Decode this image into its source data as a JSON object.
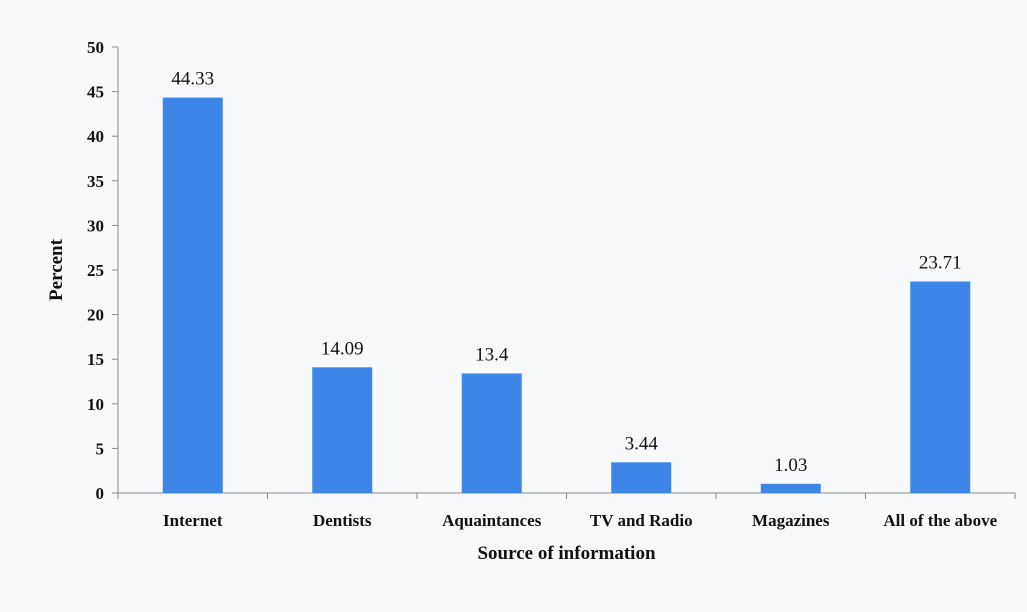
{
  "chart_data": {
    "type": "bar",
    "title": "",
    "xlabel": "Source of information",
    "ylabel": "Percent",
    "categories": [
      "Internet",
      "Dentists",
      "Aquaintances",
      "TV and Radio",
      "Magazines",
      "All of the above"
    ],
    "values": [
      44.33,
      14.09,
      13.4,
      3.44,
      1.03,
      23.71
    ],
    "data_labels": [
      "44.33",
      "14.09",
      "13.4",
      "3.44",
      "1.03",
      "23.71"
    ],
    "ylim": [
      0,
      50
    ],
    "yticks": [
      "0",
      "5",
      "10",
      "15",
      "20",
      "25",
      "30",
      "35",
      "40",
      "45",
      "50"
    ],
    "grid": false,
    "legend": "none",
    "bar_color": "#3d85e6"
  }
}
